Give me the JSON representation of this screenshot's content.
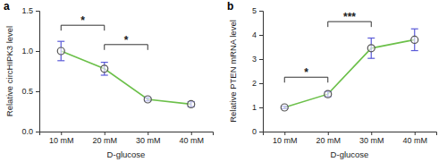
{
  "chart_data": [
    {
      "type": "line",
      "title": "a",
      "x_label": "D-glucose",
      "y_label": "Relative circHIPK3 level",
      "categories": [
        "10 mM",
        "20 mM",
        "30 mM",
        "40 mM"
      ],
      "series": [
        {
          "color": "#6cc04a",
          "marker": "circle",
          "values": [
            1.0,
            0.78,
            0.4,
            0.34
          ],
          "errors": [
            0.12,
            0.08,
            0.02,
            0.03
          ]
        }
      ],
      "ylim": [
        0,
        1.5
      ],
      "yticks": [
        {
          "value": 0,
          "label": "0.0"
        },
        0.5,
        {
          "value": 1,
          "label": "1.0"
        },
        1.5
      ],
      "annotations": [
        {
          "text": "*",
          "from": 0,
          "to": 1,
          "y": 1.32
        },
        {
          "text": "*",
          "from": 1,
          "to": 2,
          "y": 1.08
        }
      ]
    },
    {
      "type": "line",
      "title": "b",
      "x_label": "D-glucose",
      "y_label": "Relative PTEN mRNA level",
      "categories": [
        "10 mM",
        "20 mM",
        "30 mM",
        "40 mM"
      ],
      "series": [
        {
          "color": "#6cc04a",
          "marker": "circle",
          "values": [
            1.0,
            1.55,
            3.45,
            3.8
          ],
          "errors": [
            0.05,
            0.1,
            0.42,
            0.45
          ]
        }
      ],
      "ylim": [
        0,
        5
      ],
      "yticks": [
        0,
        1,
        2,
        3,
        4,
        5
      ],
      "annotations": [
        {
          "text": "*",
          "from": 0,
          "to": 1,
          "y": 2.25
        },
        {
          "text": "***",
          "from": 1,
          "to": 2,
          "y": 4.55
        }
      ]
    }
  ]
}
